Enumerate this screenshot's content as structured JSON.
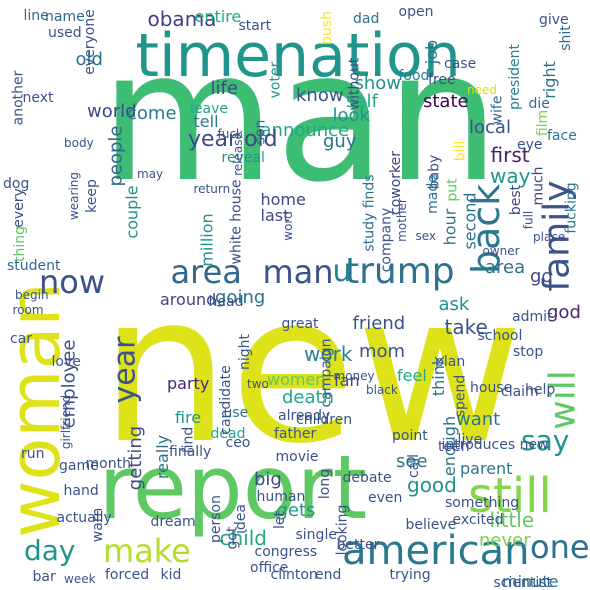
{
  "words": [
    {
      "text": "man",
      "color": "#3dbc74"
    },
    {
      "text": "new",
      "color": "#dde318"
    },
    {
      "text": "timenation",
      "color": "#1f958b"
    },
    {
      "text": "report",
      "color": "#5ec962"
    },
    {
      "text": "woman",
      "color": "#dde318"
    },
    {
      "text": "trump",
      "color": "#2c728e"
    },
    {
      "text": "area",
      "color": "#31688e"
    },
    {
      "text": "man",
      "color": "#3b528b"
    },
    {
      "text": "american",
      "color": "#2a788e"
    },
    {
      "text": "still",
      "color": "#86d549"
    },
    {
      "text": "make",
      "color": "#b5de2b"
    },
    {
      "text": "family",
      "color": "#3b528b"
    },
    {
      "text": "back",
      "color": "#2a788e"
    },
    {
      "text": "year",
      "color": "#3b528b"
    },
    {
      "text": "now",
      "color": "#3b528b"
    },
    {
      "text": "one",
      "color": "#2c728e"
    },
    {
      "text": "day",
      "color": "#1f958b"
    },
    {
      "text": "will",
      "color": "#5ec962"
    },
    {
      "text": "say",
      "color": "#1f958b"
    },
    {
      "text": "u",
      "color": "#26828e"
    },
    {
      "text": "obama",
      "color": "#433e85"
    },
    {
      "text": "announce",
      "color": "#22a884"
    },
    {
      "text": "local",
      "color": "#3b528b"
    },
    {
      "text": "first",
      "color": "#481f70"
    },
    {
      "text": "life",
      "color": "#3e4989"
    },
    {
      "text": "world",
      "color": "#3e4989"
    },
    {
      "text": "year old",
      "color": "#3e4989"
    },
    {
      "text": "come",
      "color": "#2a788e"
    },
    {
      "text": "old",
      "color": "#2c728e"
    },
    {
      "text": "show",
      "color": "#21918c"
    },
    {
      "text": "self",
      "color": "#22a884"
    },
    {
      "text": "state",
      "color": "#440154"
    },
    {
      "text": "know",
      "color": "#3b528b"
    },
    {
      "text": "guy",
      "color": "#2c728e"
    },
    {
      "text": "way",
      "color": "#1f958b"
    },
    {
      "text": "look",
      "color": "#1f958b"
    },
    {
      "text": "people",
      "color": "#31688e"
    },
    {
      "text": "home",
      "color": "#414487"
    },
    {
      "text": "couple",
      "color": "#21918c"
    },
    {
      "text": "going",
      "color": "#2c728e"
    },
    {
      "text": "around",
      "color": "#433e85"
    },
    {
      "text": "take",
      "color": "#3b528b"
    },
    {
      "text": "friend",
      "color": "#3b528b"
    },
    {
      "text": "work",
      "color": "#26828e"
    },
    {
      "text": "white house",
      "color": "#3e4989"
    },
    {
      "text": "study finds",
      "color": "#2c728e"
    },
    {
      "text": "death",
      "color": "#22a884"
    },
    {
      "text": "want",
      "color": "#2a788e"
    },
    {
      "text": "see",
      "color": "#2c728e"
    },
    {
      "text": "good",
      "color": "#21918c"
    },
    {
      "text": "little",
      "color": "#5ec962"
    },
    {
      "text": "child",
      "color": "#22a884"
    },
    {
      "text": "gets",
      "color": "#1f958b"
    },
    {
      "text": "big",
      "color": "#3e4989"
    },
    {
      "text": "never",
      "color": "#7ad151"
    },
    {
      "text": "mom",
      "color": "#3b528b"
    },
    {
      "text": "ask",
      "color": "#21918c"
    },
    {
      "text": "god",
      "color": "#482677"
    },
    {
      "text": "area",
      "color": "#2c728e"
    },
    {
      "text": "go",
      "color": "#3e4989"
    },
    {
      "text": "every",
      "color": "#3b528b"
    },
    {
      "text": "thing",
      "color": "#5ec962"
    },
    {
      "text": "getting",
      "color": "#3e4989"
    },
    {
      "text": "really",
      "color": "#2c728e"
    },
    {
      "text": "million",
      "color": "#21918c"
    },
    {
      "text": "employee",
      "color": "#3b528b"
    },
    {
      "text": "job",
      "color": "#2c728e"
    },
    {
      "text": "right",
      "color": "#2c728e"
    },
    {
      "text": "hour",
      "color": "#2c728e"
    },
    {
      "text": "second",
      "color": "#2c728e"
    },
    {
      "text": "last",
      "color": "#3e4989"
    },
    {
      "text": "tell",
      "color": "#2a788e"
    },
    {
      "text": "reveal",
      "color": "#1f958b"
    },
    {
      "text": "leave",
      "color": "#22a884"
    },
    {
      "text": "entire",
      "color": "#22a884"
    },
    {
      "text": "minute",
      "color": "#2c728e"
    },
    {
      "text": "parent",
      "color": "#2a788e"
    },
    {
      "text": "enough",
      "color": "#2c728e"
    },
    {
      "text": "think",
      "color": "#2c728e"
    },
    {
      "text": "feel",
      "color": "#22a884"
    },
    {
      "text": "party",
      "color": "#482677"
    },
    {
      "text": "women",
      "color": "#5ec962"
    },
    {
      "text": "fan",
      "color": "#3e4989"
    },
    {
      "text": "fire",
      "color": "#1f958b"
    },
    {
      "text": "dead",
      "color": "#22a884"
    },
    {
      "text": "use",
      "color": "#2c728e"
    },
    {
      "text": "dad",
      "color": "#2c728e"
    },
    {
      "text": "give",
      "color": "#3b528b"
    },
    {
      "text": "shit",
      "color": "#31688e"
    },
    {
      "text": "food",
      "color": "#26828e"
    },
    {
      "text": "free",
      "color": "#3e4989"
    },
    {
      "text": "face",
      "color": "#2a788e"
    },
    {
      "text": "die",
      "color": "#2c728e"
    },
    {
      "text": "fucking",
      "color": "#2a788e"
    },
    {
      "text": "much",
      "color": "#414487"
    },
    {
      "text": "best",
      "color": "#414487"
    },
    {
      "text": "baby",
      "color": "#3b528b"
    },
    {
      "text": "put",
      "color": "#5ec962"
    },
    {
      "text": "bill",
      "color": "#fde725"
    },
    {
      "text": "wife",
      "color": "#31688e"
    },
    {
      "text": "eye",
      "color": "#3b528b"
    },
    {
      "text": "film",
      "color": "#7ad151"
    },
    {
      "text": "president",
      "color": "#26828e"
    },
    {
      "text": "coworker",
      "color": "#414487"
    },
    {
      "text": "made",
      "color": "#2c728e"
    },
    {
      "text": "company",
      "color": "#3b528b"
    },
    {
      "text": "son",
      "color": "#31688e"
    },
    {
      "text": "without",
      "color": "#3e4989"
    },
    {
      "text": "bush",
      "color": "#fde725"
    },
    {
      "text": "voter",
      "color": "#1f958b"
    },
    {
      "text": "name",
      "color": "#31688e"
    },
    {
      "text": "line",
      "color": "#31688e"
    },
    {
      "text": "used",
      "color": "#3b528b"
    },
    {
      "text": "another",
      "color": "#3b528b"
    },
    {
      "text": "next",
      "color": "#3b528b"
    },
    {
      "text": "everyone",
      "color": "#3b528b"
    },
    {
      "text": "start",
      "color": "#3b528b"
    },
    {
      "text": "open",
      "color": "#3b528b"
    },
    {
      "text": "case",
      "color": "#3b528b"
    },
    {
      "text": "need",
      "color": "#dde318"
    },
    {
      "text": "dog",
      "color": "#3b528b"
    },
    {
      "text": "keep",
      "color": "#3b528b"
    },
    {
      "text": "wearing",
      "color": "#3b528b"
    },
    {
      "text": "body",
      "color": "#3b528b"
    },
    {
      "text": "fuck",
      "color": "#3b528b"
    },
    {
      "text": "may",
      "color": "#3b528b"
    },
    {
      "text": "return",
      "color": "#3b528b"
    },
    {
      "text": "release",
      "color": "#3b528b"
    },
    {
      "text": "word",
      "color": "#3b528b"
    },
    {
      "text": "mother",
      "color": "#3b528b"
    },
    {
      "text": "sex",
      "color": "#3b528b"
    },
    {
      "text": "full",
      "color": "#3b528b"
    },
    {
      "text": "place",
      "color": "#3b528b"
    },
    {
      "text": "owner",
      "color": "#3b528b"
    },
    {
      "text": "student",
      "color": "#31688e"
    },
    {
      "text": "begin",
      "color": "#3b528b"
    },
    {
      "text": "room",
      "color": "#3b528b"
    },
    {
      "text": "car",
      "color": "#3b528b"
    },
    {
      "text": "great",
      "color": "#3b528b"
    },
    {
      "text": "head",
      "color": "#3b528b"
    },
    {
      "text": "admit",
      "color": "#3b528b"
    },
    {
      "text": "stop",
      "color": "#3b528b"
    },
    {
      "text": "school",
      "color": "#3b528b"
    },
    {
      "text": "plan",
      "color": "#3b528b"
    },
    {
      "text": "spend",
      "color": "#3b528b"
    },
    {
      "text": "house",
      "color": "#3b528b"
    },
    {
      "text": "claim",
      "color": "#3b528b"
    },
    {
      "text": "help",
      "color": "#3b528b"
    },
    {
      "text": "scientist",
      "color": "#3b528b"
    },
    {
      "text": "love",
      "color": "#3b528b"
    },
    {
      "text": "girlfriend",
      "color": "#3b528b"
    },
    {
      "text": "run",
      "color": "#3b528b"
    },
    {
      "text": "candidate",
      "color": "#3b528b"
    },
    {
      "text": "night",
      "color": "#3b528b"
    },
    {
      "text": "campaign",
      "color": "#3b528b"
    },
    {
      "text": "money",
      "color": "#3b528b"
    },
    {
      "text": "two",
      "color": "#3b528b"
    },
    {
      "text": "black",
      "color": "#3b528b"
    },
    {
      "text": "already",
      "color": "#3b528b"
    },
    {
      "text": "father",
      "color": "#3b528b"
    },
    {
      "text": "children",
      "color": "#3b528b"
    },
    {
      "text": "movie",
      "color": "#3b528b"
    },
    {
      "text": "point",
      "color": "#3b528b"
    },
    {
      "text": "call",
      "color": "#3b528b"
    },
    {
      "text": "live",
      "color": "#3b528b"
    },
    {
      "text": "teen",
      "color": "#3b528b"
    },
    {
      "text": "introduces new",
      "color": "#3b528b"
    },
    {
      "text": "month",
      "color": "#3b528b"
    },
    {
      "text": "find",
      "color": "#3b528b"
    },
    {
      "text": "finally",
      "color": "#3b528b"
    },
    {
      "text": "ceo",
      "color": "#3b528b"
    },
    {
      "text": "debate",
      "color": "#3b528b"
    },
    {
      "text": "game",
      "color": "#3b528b"
    },
    {
      "text": "human",
      "color": "#3b528b"
    },
    {
      "text": "let",
      "color": "#3b528b"
    },
    {
      "text": "actually",
      "color": "#3b528b"
    },
    {
      "text": "long",
      "color": "#3b528b"
    },
    {
      "text": "hand",
      "color": "#3b528b"
    },
    {
      "text": "warn",
      "color": "#3b528b"
    },
    {
      "text": "idea",
      "color": "#3b528b"
    },
    {
      "text": "got",
      "color": "#3b528b"
    },
    {
      "text": "person",
      "color": "#3b528b"
    },
    {
      "text": "single",
      "color": "#3b528b"
    },
    {
      "text": "congress",
      "color": "#3b528b"
    },
    {
      "text": "looking",
      "color": "#3b528b"
    },
    {
      "text": "even",
      "color": "#3b528b"
    },
    {
      "text": "believe",
      "color": "#3b528b"
    },
    {
      "text": "excited",
      "color": "#3b528b"
    },
    {
      "text": "something",
      "color": "#3b528b"
    },
    {
      "text": "dream",
      "color": "#3b528b"
    },
    {
      "text": "better",
      "color": "#3b528b"
    },
    {
      "text": "office",
      "color": "#3b528b"
    },
    {
      "text": "bar",
      "color": "#3b528b"
    },
    {
      "text": "week",
      "color": "#3b528b"
    },
    {
      "text": "forced",
      "color": "#3b528b"
    },
    {
      "text": "kid",
      "color": "#3b528b"
    },
    {
      "text": "clinton",
      "color": "#3b528b"
    },
    {
      "text": "end",
      "color": "#3b528b"
    },
    {
      "text": "trying",
      "color": "#3b528b"
    }
  ]
}
